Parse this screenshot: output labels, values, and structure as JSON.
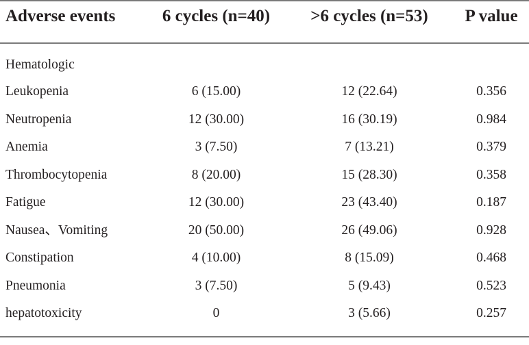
{
  "table": {
    "headers": {
      "event": "Adverse events",
      "six_cycles": "6 cycles (n=40)",
      "more_cycles": ">6 cycles (n=53)",
      "p_value": "P value"
    },
    "section_label": "Hematologic",
    "rows": [
      {
        "event": "Leukopenia",
        "six": "6 (15.00)",
        "more": "12 (22.64)",
        "p": "0.356"
      },
      {
        "event": "Neutropenia",
        "six": "12 (30.00)",
        "more": "16 (30.19)",
        "p": "0.984"
      },
      {
        "event": "Anemia",
        "six": "3 (7.50)",
        "more": "7 (13.21)",
        "p": "0.379"
      },
      {
        "event": "Thrombocytopenia",
        "six": "8 (20.00)",
        "more": "15 (28.30)",
        "p": "0.358"
      },
      {
        "event": "Fatigue",
        "six": "12 (30.00)",
        "more": "23 (43.40)",
        "p": "0.187"
      },
      {
        "event": "Nausea、Vomiting",
        "six": "20 (50.00)",
        "more": "26 (49.06)",
        "p": "0.928"
      },
      {
        "event": "Constipation",
        "six": "4 (10.00)",
        "more": "8 (15.09)",
        "p": "0.468"
      },
      {
        "event": "Pneumonia",
        "six": "3 (7.50)",
        "more": "5 (9.43)",
        "p": "0.523"
      },
      {
        "event": "hepatotoxicity",
        "six": "0",
        "more": "3  (5.66)",
        "p": "0.257"
      }
    ]
  }
}
